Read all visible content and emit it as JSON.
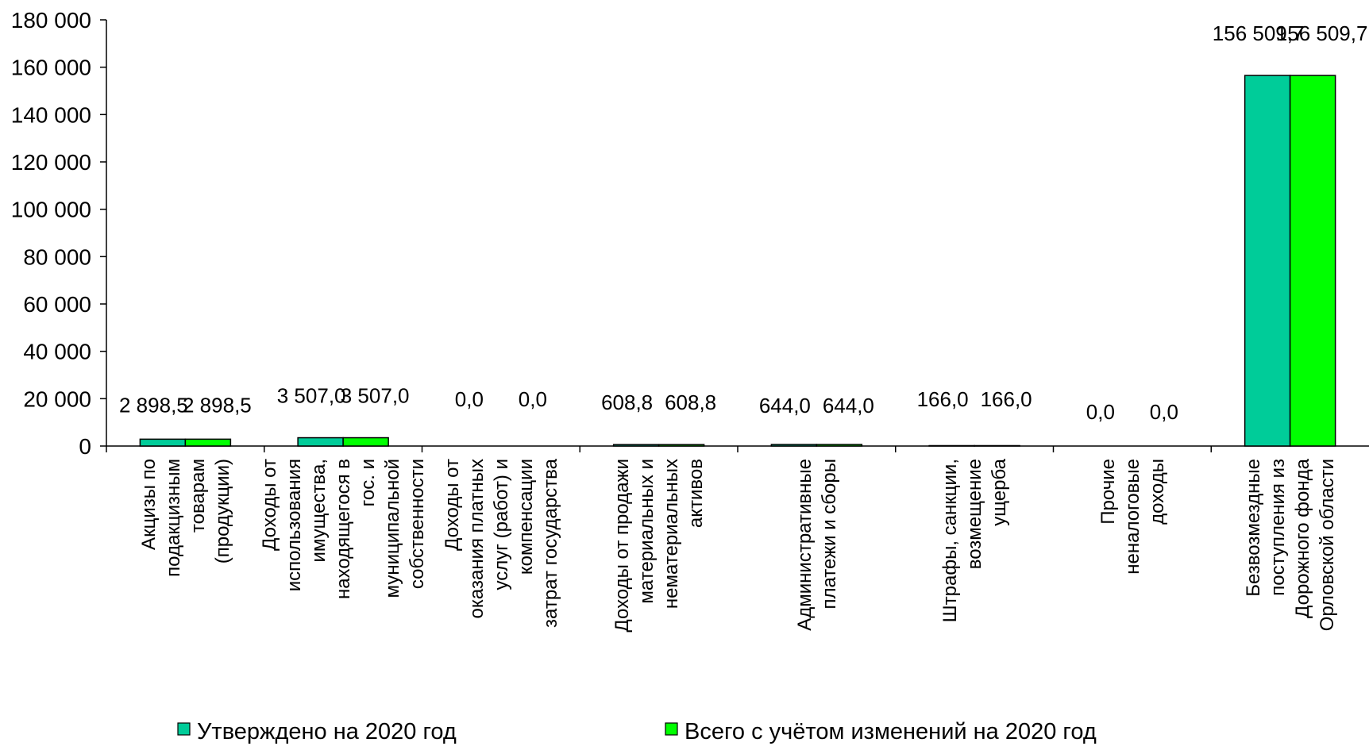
{
  "chart_data": {
    "type": "bar",
    "title": "",
    "xlabel": "",
    "ylabel": "",
    "ylim": [
      0,
      180000
    ],
    "y_ticks": [
      0,
      20000,
      40000,
      60000,
      80000,
      100000,
      120000,
      140000,
      160000,
      180000
    ],
    "y_tick_labels": [
      "0",
      "20 000",
      "40 000",
      "60 000",
      "80 000",
      "100 000",
      "120 000",
      "140 000",
      "160 000",
      "180 000"
    ],
    "grid": false,
    "legend_position": "bottom",
    "categories": [
      [
        "Акцизы по",
        "подакцизным",
        "товарам",
        "(продукции)"
      ],
      [
        "Доходы от",
        "использования",
        "имущества,",
        "находящегося в",
        "гос. и",
        "муниципальной",
        "собственности"
      ],
      [
        "Доходы от",
        "оказания платных",
        "услуг (работ) и",
        "компенсации",
        "затрат государства"
      ],
      [
        "Доходы от продажи",
        "материальных и",
        "нематериальных",
        "активов"
      ],
      [
        "Административные",
        "платежи и сборы"
      ],
      [
        "Штрафы, санкции,",
        "возмещение",
        "ущерба"
      ],
      [
        "Прочие",
        "неналоговые",
        "доходы"
      ],
      [
        "Безвозмездные",
        "поступления из",
        "Дорожного фонда",
        "Орловской области"
      ]
    ],
    "series": [
      {
        "name": "Утверждено на 2020 год",
        "color": "#00CC99",
        "values": [
          2898.5,
          3507.0,
          0.0,
          608.8,
          644.0,
          166.0,
          0.0,
          156509.7
        ],
        "labels": [
          "2 898,5",
          "3 507,0",
          "0,0",
          "608,8",
          "644,0",
          "166,0",
          "0,0",
          "156 509,7"
        ]
      },
      {
        "name": "Всего с учётом изменений на 2020 год",
        "color": "#00FF00",
        "values": [
          2898.5,
          3507.0,
          0.0,
          608.8,
          644.0,
          166.0,
          0.0,
          156509.7
        ],
        "labels": [
          "2 898,5",
          "3 507,0",
          "0,0",
          "608,8",
          "644,0",
          "166,0",
          "0,0",
          "156 509,7"
        ]
      }
    ]
  }
}
